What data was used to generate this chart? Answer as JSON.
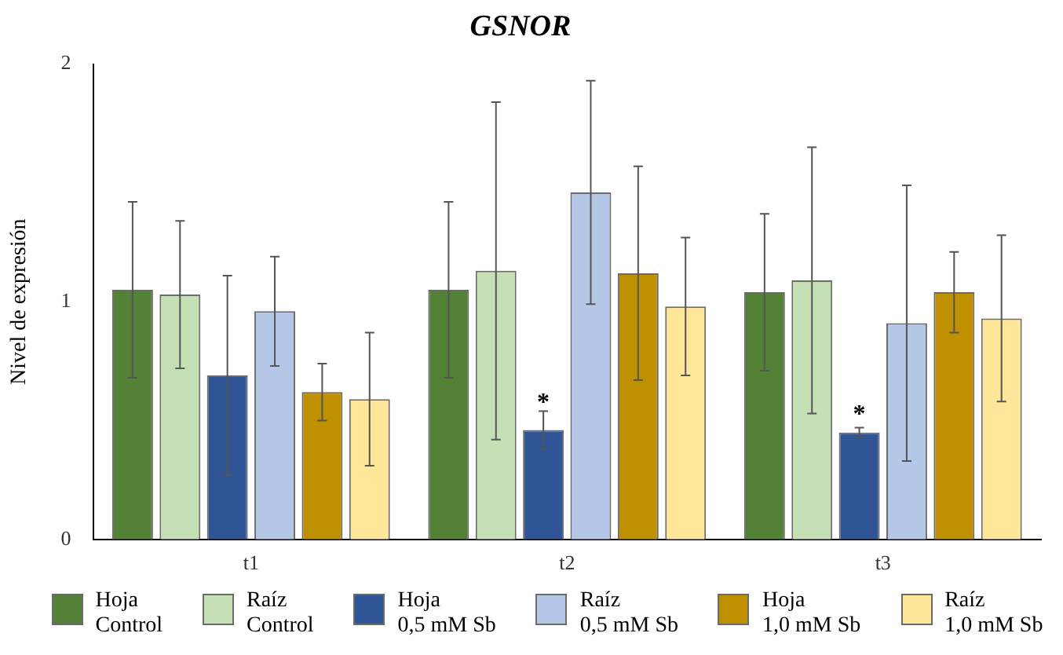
{
  "chart_data": {
    "type": "bar",
    "title": "GSNOR",
    "ylabel": "Nivel de expresión",
    "categories": [
      "t1",
      "t2",
      "t3"
    ],
    "ylim": [
      0,
      2
    ],
    "yticks": [
      0,
      1,
      2
    ],
    "grid": false,
    "legend": "bottom",
    "series": [
      {
        "name": "Hoja\nControl",
        "color": "#538135",
        "values": [
          1.05,
          1.05,
          1.04
        ],
        "errors": [
          0.37,
          0.37,
          0.33
        ]
      },
      {
        "name": "Raíz\nControl",
        "color": "#c5e0b4",
        "values": [
          1.03,
          1.13,
          1.09
        ],
        "errors": [
          0.31,
          0.71,
          0.56
        ]
      },
      {
        "name": "Hoja\n0,5 mM Sb",
        "color": "#2f5597",
        "values": [
          0.69,
          0.46,
          0.45
        ],
        "errors": [
          0.42,
          0.08,
          0.02
        ]
      },
      {
        "name": "Raíz\n0,5 mM Sb",
        "color": "#b4c7e7",
        "values": [
          0.96,
          1.46,
          0.91
        ],
        "errors": [
          0.23,
          0.47,
          0.58
        ]
      },
      {
        "name": "Hoja\n1,0 mM Sb",
        "color": "#bf9000",
        "values": [
          0.62,
          1.12,
          1.04
        ],
        "errors": [
          0.12,
          0.45,
          0.17
        ]
      },
      {
        "name": "Raíz\n1,0 mM Sb",
        "color": "#ffe699",
        "values": [
          0.59,
          0.98,
          0.93
        ],
        "errors": [
          0.28,
          0.29,
          0.35
        ]
      }
    ],
    "annotations": [
      {
        "text": "*",
        "x": "t2",
        "y": 0.6
      },
      {
        "text": "*",
        "x": "t3",
        "y": 0.55
      }
    ]
  }
}
